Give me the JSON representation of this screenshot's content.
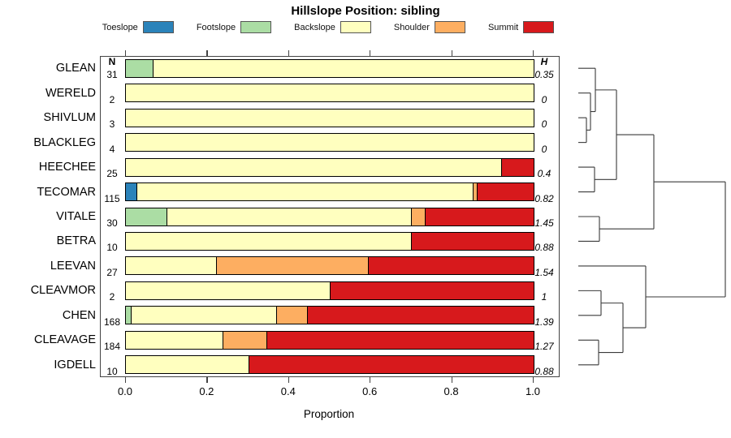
{
  "title": "Hillslope Position: sibling",
  "legend": [
    {
      "label": "Toeslope",
      "color": "#2B83BA"
    },
    {
      "label": "Footslope",
      "color": "#ABDDA4"
    },
    {
      "label": "Backslope",
      "color": "#FFFFBF"
    },
    {
      "label": "Shoulder",
      "color": "#FDAE61"
    },
    {
      "label": "Summit",
      "color": "#D7191C"
    }
  ],
  "columns": {
    "n_header": "N",
    "h_header": "H"
  },
  "axis": {
    "xlabel": "Proportion",
    "tick_labels": [
      "0.0",
      "0.2",
      "0.4",
      "0.6",
      "0.8",
      "1.0"
    ],
    "tick_values": [
      0,
      0.2,
      0.4,
      0.6,
      0.8,
      1.0
    ]
  },
  "chart_data": {
    "type": "bar",
    "orientation": "horizontal",
    "stacked": true,
    "title": "Hillslope Position: sibling",
    "xlabel": "Proportion",
    "xlim": [
      0,
      1
    ],
    "legend_position": "top",
    "grid": false,
    "series_order": [
      "Toeslope",
      "Footslope",
      "Backslope",
      "Shoulder",
      "Summit"
    ],
    "rows": [
      {
        "name": "GLEAN",
        "n": "31",
        "h": "0.35",
        "segments": [
          [
            "Footslope",
            0.065
          ],
          [
            "Backslope",
            0.935
          ]
        ]
      },
      {
        "name": "WERELD",
        "n": "2",
        "h": "0",
        "segments": [
          [
            "Backslope",
            1.0
          ]
        ]
      },
      {
        "name": "SHIVLUM",
        "n": "3",
        "h": "0",
        "segments": [
          [
            "Backslope",
            1.0
          ]
        ]
      },
      {
        "name": "BLACKLEG",
        "n": "4",
        "h": "0",
        "segments": [
          [
            "Backslope",
            1.0
          ]
        ]
      },
      {
        "name": "HEECHEE",
        "n": "25",
        "h": "0.4",
        "segments": [
          [
            "Backslope",
            0.92
          ],
          [
            "Summit",
            0.08
          ]
        ]
      },
      {
        "name": "TECOMAR",
        "n": "115",
        "h": "0.82",
        "segments": [
          [
            "Toeslope",
            0.026
          ],
          [
            "Backslope",
            0.824
          ],
          [
            "Shoulder",
            0.011
          ],
          [
            "Summit",
            0.139
          ]
        ]
      },
      {
        "name": "VITALE",
        "n": "30",
        "h": "1.45",
        "segments": [
          [
            "Footslope",
            0.1
          ],
          [
            "Backslope",
            0.6
          ],
          [
            "Shoulder",
            0.033
          ],
          [
            "Summit",
            0.267
          ]
        ]
      },
      {
        "name": "BETRA",
        "n": "10",
        "h": "0.88",
        "segments": [
          [
            "Backslope",
            0.7
          ],
          [
            "Summit",
            0.3
          ]
        ]
      },
      {
        "name": "LEEVAN",
        "n": "27",
        "h": "1.54",
        "segments": [
          [
            "Backslope",
            0.222
          ],
          [
            "Shoulder",
            0.371
          ],
          [
            "Summit",
            0.407
          ]
        ]
      },
      {
        "name": "CLEAVMOR",
        "n": "2",
        "h": "1",
        "segments": [
          [
            "Backslope",
            0.5
          ],
          [
            "Summit",
            0.5
          ]
        ]
      },
      {
        "name": "CHEN",
        "n": "168",
        "h": "1.39",
        "segments": [
          [
            "Footslope",
            0.012
          ],
          [
            "Backslope",
            0.357
          ],
          [
            "Shoulder",
            0.076
          ],
          [
            "Summit",
            0.555
          ]
        ]
      },
      {
        "name": "CLEAVAGE",
        "n": "184",
        "h": "1.27",
        "segments": [
          [
            "Backslope",
            0.238
          ],
          [
            "Shoulder",
            0.107
          ],
          [
            "Summit",
            0.655
          ]
        ]
      },
      {
        "name": "IGDELL",
        "n": "10",
        "h": "0.88",
        "segments": [
          [
            "Backslope",
            0.3
          ],
          [
            "Summit",
            0.7
          ]
        ]
      }
    ],
    "dendrogram": {
      "y_units": "row-index",
      "segments": [
        [
          712,
          0,
          733,
          0
        ],
        [
          712,
          1,
          727,
          1
        ],
        [
          712,
          2,
          722,
          2
        ],
        [
          712,
          3,
          722,
          3
        ],
        [
          722,
          2,
          722,
          3
        ],
        [
          722,
          2.5,
          727,
          2.5
        ],
        [
          727,
          1,
          727,
          2.5
        ],
        [
          727,
          1.75,
          733,
          1.75
        ],
        [
          733,
          0,
          733,
          1.75
        ],
        [
          733,
          0.875,
          759,
          0.875
        ],
        [
          712,
          4,
          732,
          4
        ],
        [
          712,
          5,
          732,
          5
        ],
        [
          732,
          4,
          732,
          5
        ],
        [
          732,
          4.5,
          759,
          4.5
        ],
        [
          759,
          0.875,
          759,
          4.5
        ],
        [
          759,
          2.6875,
          805,
          2.6875
        ],
        [
          712,
          6,
          738,
          6
        ],
        [
          712,
          7,
          738,
          7
        ],
        [
          738,
          6,
          738,
          7
        ],
        [
          738,
          6.5,
          805,
          6.5
        ],
        [
          805,
          2.6875,
          805,
          6.5
        ],
        [
          805,
          4.59375,
          893,
          4.59375
        ],
        [
          712,
          8,
          795,
          8
        ],
        [
          712,
          9,
          740,
          9
        ],
        [
          712,
          10,
          740,
          10
        ],
        [
          740,
          9,
          740,
          10
        ],
        [
          740,
          9.5,
          767,
          9.5
        ],
        [
          712,
          11,
          737,
          11
        ],
        [
          712,
          12,
          737,
          12
        ],
        [
          737,
          11,
          737,
          12
        ],
        [
          737,
          11.5,
          767,
          11.5
        ],
        [
          767,
          9.5,
          767,
          11.5
        ],
        [
          767,
          10.5,
          795,
          10.5
        ],
        [
          795,
          8,
          795,
          10.5
        ],
        [
          795,
          9.25,
          893,
          9.25
        ],
        [
          893,
          4.59375,
          893,
          9.25
        ]
      ]
    }
  }
}
